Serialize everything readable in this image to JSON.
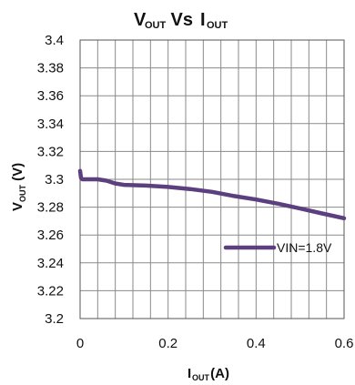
{
  "chart_data": {
    "type": "line",
    "title_parts": {
      "v": "V",
      "v_sub": "OUT",
      "mid": " Vs ",
      "i": "I",
      "i_sub": "OUT"
    },
    "xlabel_parts": {
      "main": "I",
      "sub": "OUT",
      "unit": " (A)"
    },
    "ylabel_parts": {
      "main": "V",
      "sub": "OUT",
      "unit": " (V)"
    },
    "xlim": [
      0,
      0.6
    ],
    "ylim": [
      3.2,
      3.4
    ],
    "x_ticks": [
      0,
      0.2,
      0.4,
      0.6
    ],
    "x_tick_labels": [
      "0",
      "0.2",
      "0.4",
      "0.6"
    ],
    "y_ticks": [
      3.2,
      3.22,
      3.24,
      3.26,
      3.28,
      3.3,
      3.32,
      3.34,
      3.36,
      3.38,
      3.4
    ],
    "y_tick_labels": [
      "3.2",
      "3.22",
      "3.24",
      "3.26",
      "3.28",
      "3.3",
      "3.32",
      "3.34",
      "3.36",
      "3.38",
      "3.4"
    ],
    "x_minor_step": 0.04,
    "grid": true,
    "legend_position": "lower-right",
    "series": [
      {
        "name": "VIN=1.8V",
        "color": "#5b3f7e",
        "x": [
          0.0,
          0.002,
          0.005,
          0.01,
          0.02,
          0.04,
          0.06,
          0.08,
          0.1,
          0.15,
          0.2,
          0.25,
          0.3,
          0.35,
          0.4,
          0.45,
          0.5,
          0.55,
          0.6
        ],
        "y": [
          3.306,
          3.301,
          3.3,
          3.3,
          3.3,
          3.3,
          3.299,
          3.297,
          3.296,
          3.2955,
          3.2945,
          3.293,
          3.291,
          3.288,
          3.2855,
          3.2825,
          3.279,
          3.2755,
          3.272
        ]
      }
    ]
  }
}
